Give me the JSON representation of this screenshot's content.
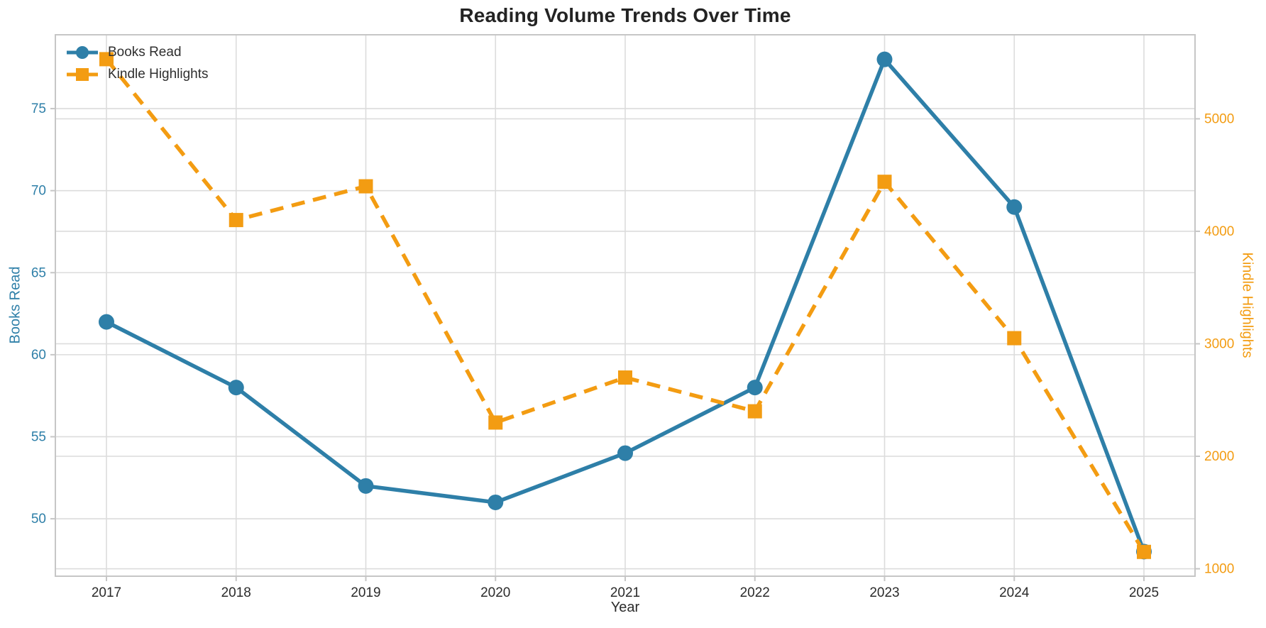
{
  "chart_data": {
    "type": "line",
    "title": "Reading Volume Trends Over Time",
    "xlabel": "Year",
    "ylabel_left": "Books Read",
    "ylabel_right": "Kindle Highlights",
    "categories": [
      "2017",
      "2018",
      "2019",
      "2020",
      "2021",
      "2022",
      "2023",
      "2024",
      "2025"
    ],
    "series": [
      {
        "name": "Books Read",
        "axis": "left",
        "color": "#2e7fa8",
        "line_style": "solid",
        "marker": "circle",
        "values": [
          62,
          58,
          52,
          51,
          54,
          58,
          78,
          69,
          48
        ]
      },
      {
        "name": "Kindle Highlights",
        "axis": "right",
        "color": "#f39c12",
        "line_style": "dashed",
        "marker": "square",
        "values": [
          5530,
          4100,
          4400,
          2300,
          2700,
          2400,
          4440,
          3050,
          1150
        ]
      }
    ],
    "left_axis": {
      "ticks": [
        50,
        55,
        60,
        65,
        70,
        75
      ],
      "range": [
        46.5,
        79.5
      ],
      "color": "#2e7fa8"
    },
    "right_axis": {
      "ticks": [
        1000,
        2000,
        3000,
        4000,
        5000
      ],
      "range": [
        934,
        5747
      ],
      "color": "#f39c12"
    },
    "legend": {
      "position": "upper-left",
      "entries": [
        "Books Read",
        "Kindle Highlights"
      ]
    },
    "grid": true,
    "grid_color": "#dcdcdc",
    "border_color": "#c6c6c6",
    "background": "#ffffff"
  }
}
